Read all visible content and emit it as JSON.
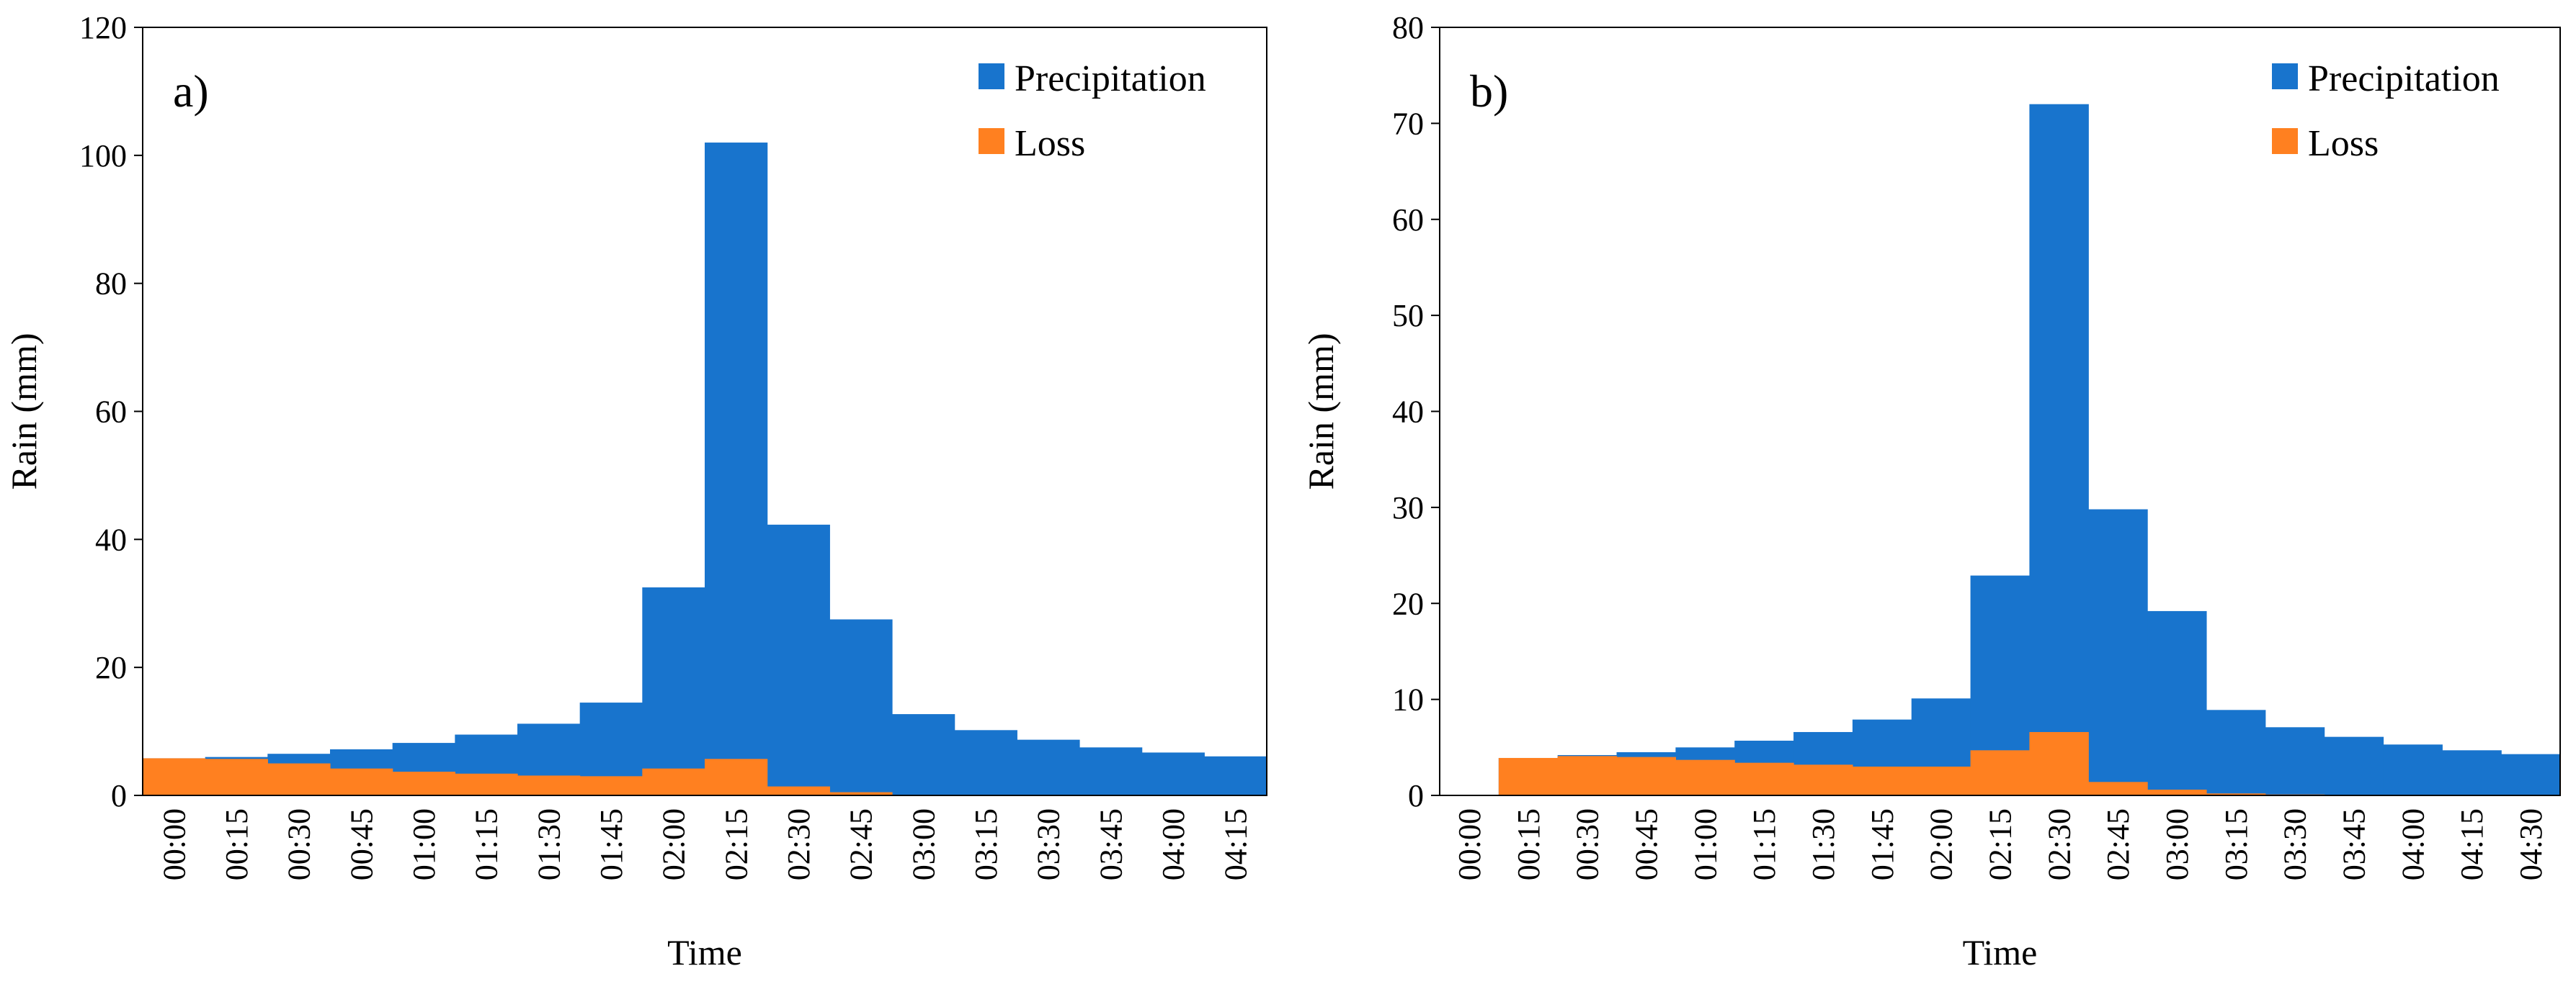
{
  "chart_data": [
    {
      "type": "bar",
      "stacking": "overlay",
      "panel_label": "a)",
      "xlabel": "Time",
      "ylabel": "Rain (mm)",
      "ylim": [
        0,
        120
      ],
      "yticks": [
        0,
        20,
        40,
        60,
        80,
        100,
        120
      ],
      "categories": [
        "00:00",
        "00:15",
        "00:30",
        "00:45",
        "01:00",
        "01:15",
        "01:30",
        "01:45",
        "02:00",
        "02:15",
        "02:30",
        "02:45",
        "03:00",
        "03:15",
        "03:30",
        "03:45",
        "04:00",
        "04:15"
      ],
      "series": [
        {
          "name": "Precipitation",
          "color": "#1874CD",
          "values": [
            5.8,
            6.0,
            6.5,
            7.2,
            8.2,
            9.5,
            11.2,
            14.5,
            32.5,
            102.0,
            42.3,
            27.5,
            12.7,
            10.2,
            8.7,
            7.5,
            6.7,
            6.1
          ]
        },
        {
          "name": "Loss",
          "color": "#FF8020",
          "values": [
            5.8,
            5.7,
            5.0,
            4.2,
            3.7,
            3.4,
            3.1,
            3.0,
            4.2,
            5.7,
            1.4,
            0.5,
            0,
            0,
            0,
            0,
            0,
            0
          ]
        }
      ],
      "legend": {
        "position": "top-right",
        "entries": [
          "Precipitation",
          "Loss"
        ]
      }
    },
    {
      "type": "bar",
      "stacking": "overlay",
      "panel_label": "b)",
      "xlabel": "Time",
      "ylabel": "Rain (mm)",
      "ylim": [
        0,
        80
      ],
      "yticks": [
        0,
        10,
        20,
        30,
        40,
        50,
        60,
        70,
        80
      ],
      "categories": [
        "00:00",
        "00:15",
        "00:30",
        "00:45",
        "01:00",
        "01:15",
        "01:30",
        "01:45",
        "02:00",
        "02:15",
        "02:30",
        "02:45",
        "03:00",
        "03:15",
        "03:30",
        "03:45",
        "04:00",
        "04:15",
        "04:30"
      ],
      "series": [
        {
          "name": "Precipitation",
          "color": "#1874CD",
          "values": [
            0,
            3.9,
            4.2,
            4.5,
            5.0,
            5.7,
            6.6,
            7.9,
            10.1,
            22.9,
            72.0,
            29.8,
            19.2,
            8.9,
            7.1,
            6.1,
            5.3,
            4.7,
            4.3
          ]
        },
        {
          "name": "Loss",
          "color": "#FF8020",
          "values": [
            0,
            3.9,
            4.1,
            4.0,
            3.7,
            3.4,
            3.2,
            3.0,
            3.0,
            4.7,
            6.6,
            1.4,
            0.6,
            0.2,
            0.1,
            0,
            0,
            0,
            0
          ]
        }
      ],
      "legend": {
        "position": "top-right",
        "entries": [
          "Precipitation",
          "Loss"
        ]
      }
    }
  ]
}
